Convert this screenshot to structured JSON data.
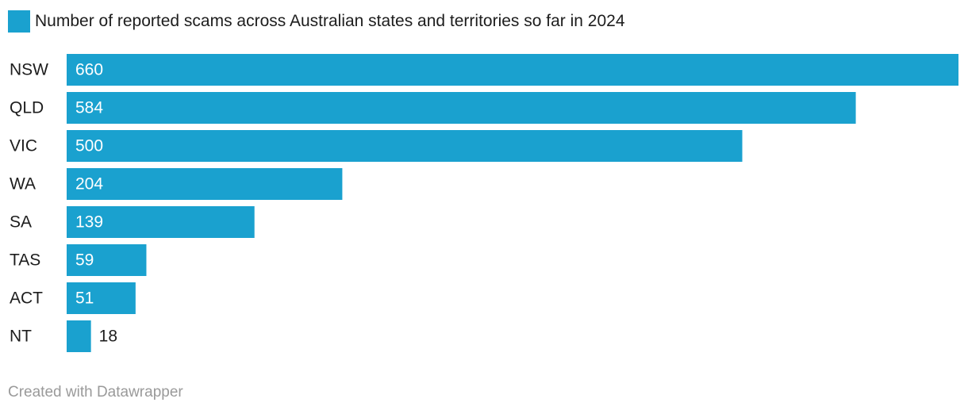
{
  "chart_data": {
    "type": "bar",
    "orientation": "horizontal",
    "categories": [
      "NSW",
      "QLD",
      "VIC",
      "WA",
      "SA",
      "TAS",
      "ACT",
      "NT"
    ],
    "series": [
      {
        "name": "Number of reported scams across Australian states and territories so far in 2024",
        "values": [
          660,
          584,
          500,
          204,
          139,
          59,
          51,
          18
        ],
        "color": "#1aa1cf"
      }
    ],
    "xlim": [
      0,
      660
    ],
    "grid": false,
    "legend_position": "top-left",
    "value_labels_colors": {
      "inside": "#ffffff",
      "outside": "#1d1d1d"
    }
  },
  "footer": {
    "credit": "Created with Datawrapper"
  }
}
